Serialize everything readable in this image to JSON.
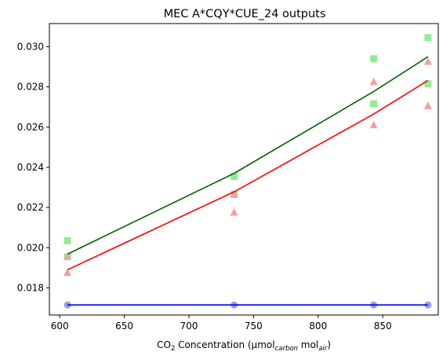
{
  "chart_data": {
    "type": "scatter",
    "title": "MEC A*CQY*CUE_24 outputs",
    "xlabel": {
      "prefix": "CO",
      "sub1": "2",
      "mid": " Concentration (µmol",
      "sub2": "carbon",
      "mid2": " mol",
      "sub3": "air",
      "suffix": ")"
    },
    "ylabel": "",
    "xlim": [
      592,
      893
    ],
    "ylim": [
      0.01665,
      0.03115
    ],
    "x_ticks": [
      600,
      650,
      700,
      750,
      800,
      850
    ],
    "y_ticks": [
      0.018,
      0.02,
      0.022,
      0.024,
      0.026,
      0.028,
      0.03
    ],
    "y_tick_labels": [
      "0.018",
      "0.020",
      "0.022",
      "0.024",
      "0.026",
      "0.028",
      "0.030"
    ],
    "grid": false,
    "series": [
      {
        "marker": "square",
        "color": "#90ee90",
        "points": [
          [
            606,
            0.02035
          ],
          [
            606,
            0.01955
          ],
          [
            735,
            0.02355
          ],
          [
            735,
            0.02265
          ],
          [
            843,
            0.0294
          ],
          [
            843,
            0.02715
          ],
          [
            885,
            0.03045
          ],
          [
            885,
            0.02815
          ]
        ]
      },
      {
        "marker": "triangle",
        "color": "#f4a0a0",
        "points": [
          [
            606,
            0.01955
          ],
          [
            606,
            0.01875
          ],
          [
            735,
            0.02265
          ],
          [
            735,
            0.02175
          ],
          [
            843,
            0.02825
          ],
          [
            843,
            0.0261
          ],
          [
            885,
            0.02925
          ],
          [
            885,
            0.02705
          ]
        ]
      },
      {
        "marker": "circle",
        "color": "#9999f5",
        "points": [
          [
            606,
            0.01715
          ],
          [
            735,
            0.01715
          ],
          [
            843,
            0.01715
          ],
          [
            885,
            0.01715
          ]
        ]
      }
    ],
    "lines": [
      {
        "color": "#006400",
        "x": [
          606,
          735,
          843,
          885
        ],
        "y": [
          0.01968,
          0.0237,
          0.02777,
          0.0295
        ]
      },
      {
        "color": "#ff0000",
        "x": [
          606,
          735,
          843,
          885
        ],
        "y": [
          0.0189,
          0.02278,
          0.02665,
          0.02832
        ]
      },
      {
        "color": "#0000ff",
        "x": [
          606,
          735,
          843,
          885
        ],
        "y": [
          0.01715,
          0.01715,
          0.01715,
          0.01715
        ]
      }
    ]
  }
}
